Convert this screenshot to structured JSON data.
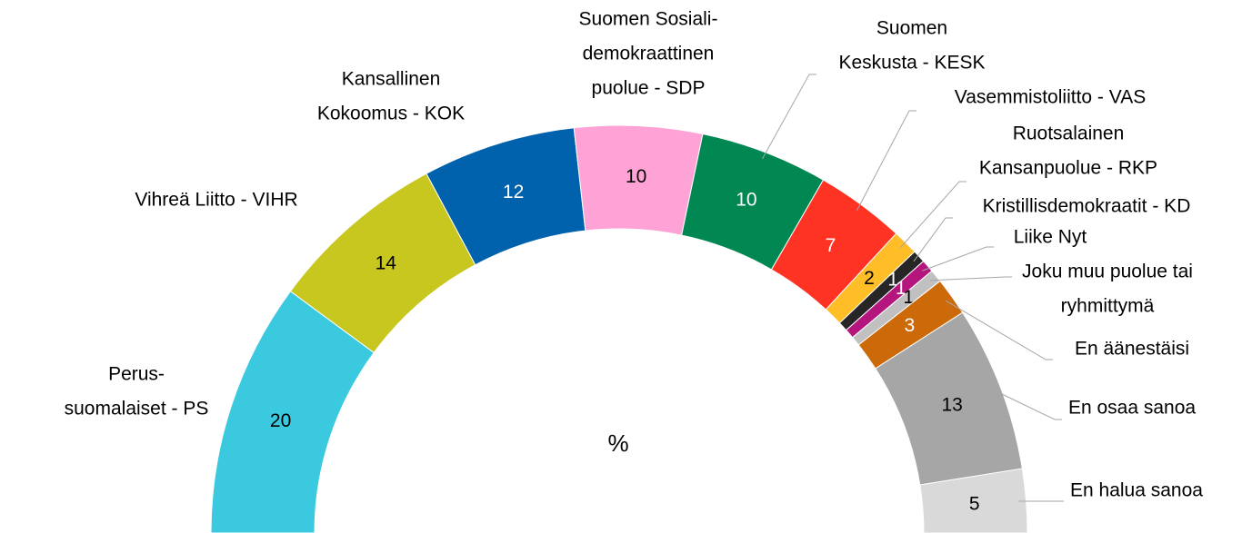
{
  "chart_data": {
    "type": "half-donut",
    "center_label": "%",
    "categories": [
      [
        "Perus-",
        "suomalaiset - PS"
      ],
      [
        "Vihreä Liitto - VIHR"
      ],
      [
        "Kansallinen",
        "Kokoomus - KOK"
      ],
      [
        "Suomen Sosiali-",
        "demokraattinen",
        "puolue - SDP"
      ],
      [
        "Suomen",
        "Keskusta - KESK"
      ],
      [
        "Vasemmistoliitto - VAS"
      ],
      [
        "Ruotsalainen",
        "Kansanpuolue - RKP"
      ],
      [
        "Kristillisdemokraatit - KD"
      ],
      [
        "Liike Nyt"
      ],
      [
        "Joku muu puolue tai",
        "ryhmittymä"
      ],
      [
        "En äänestäisi"
      ],
      [
        "En osaa sanoa"
      ],
      [
        "En halua sanoa"
      ]
    ],
    "values": [
      20,
      14,
      12,
      10,
      10,
      7,
      2,
      1,
      1,
      1,
      3,
      13,
      5
    ],
    "colors": [
      "#3ac9df",
      "#c7c720",
      "#0061ac",
      "#ffa2d6",
      "#008752",
      "#ff3323",
      "#ffbd28",
      "#262626",
      "#b5167e",
      "#c0c0c0",
      "#cc6a0a",
      "#a6a6a6",
      "#d9d9d9"
    ]
  }
}
